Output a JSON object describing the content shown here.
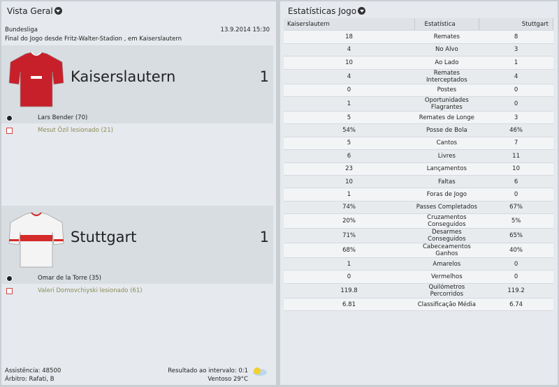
{
  "overview": {
    "title": "Vista Geral",
    "competition": "Bundesliga",
    "date": "13.9.2014 15:30",
    "venue": "Final do Jogo desde Fritz-Walter-Stadion , em Kaiserslautern",
    "teams": [
      {
        "name": "Kaiserslautern",
        "score": 1,
        "kit": "red",
        "events": [
          {
            "kind": "goal",
            "text": "Lars Bender (70)"
          },
          {
            "kind": "injury",
            "text": "Mesut Özil lesionado (21)"
          }
        ]
      },
      {
        "name": "Stuttgart",
        "score": 1,
        "kit": "white",
        "events": [
          {
            "kind": "goal",
            "text": "Omar de la Torre (35)"
          },
          {
            "kind": "injury",
            "text": "Valeri Domovchiyski lesionado (61)"
          }
        ]
      }
    ],
    "attendance": "Assistência: 48500",
    "referee": "Árbitro: Rafati, B",
    "halftime": "Resultado ao intervalo: 0:1",
    "weather": "Ventoso 29°C"
  },
  "stats": {
    "title": "Estatísticas Jogo",
    "header": [
      "Kaiserslautern",
      "Estatística",
      "Stuttgart"
    ],
    "rows": [
      [
        "18",
        "Remates",
        "8"
      ],
      [
        "4",
        "No Alvo",
        "3"
      ],
      [
        "10",
        "Ao Lado",
        "1"
      ],
      [
        "4",
        "Remates Interceptados",
        "4"
      ],
      [
        "0",
        "Postes",
        "0"
      ],
      [
        "1",
        "Oportunidades Flagrantes",
        "0"
      ],
      [
        "5",
        "Remates de Longe",
        "3"
      ],
      [
        "54%",
        "Posse de Bola",
        "46%"
      ],
      [
        "5",
        "Cantos",
        "7"
      ],
      [
        "6",
        "Livres",
        "11"
      ],
      [
        "23",
        "Lançamentos",
        "10"
      ],
      [
        "10",
        "Faltas",
        "6"
      ],
      [
        "1",
        "Foras de Jogo",
        "0"
      ],
      [
        "74%",
        "Passes Completados",
        "67%"
      ],
      [
        "20%",
        "Cruzamentos Conseguidos",
        "5%"
      ],
      [
        "71%",
        "Desarmes Conseguidos",
        "65%"
      ],
      [
        "68%",
        "Cabeceamentos Ganhos",
        "40%"
      ],
      [
        "1",
        "Amarelos",
        "0"
      ],
      [
        "0",
        "Vermelhos",
        "0"
      ],
      [
        "119.8",
        "Quilómetros Percorridos",
        "119.2"
      ],
      [
        "6.81",
        "Classificação Média",
        "6.74"
      ]
    ]
  }
}
